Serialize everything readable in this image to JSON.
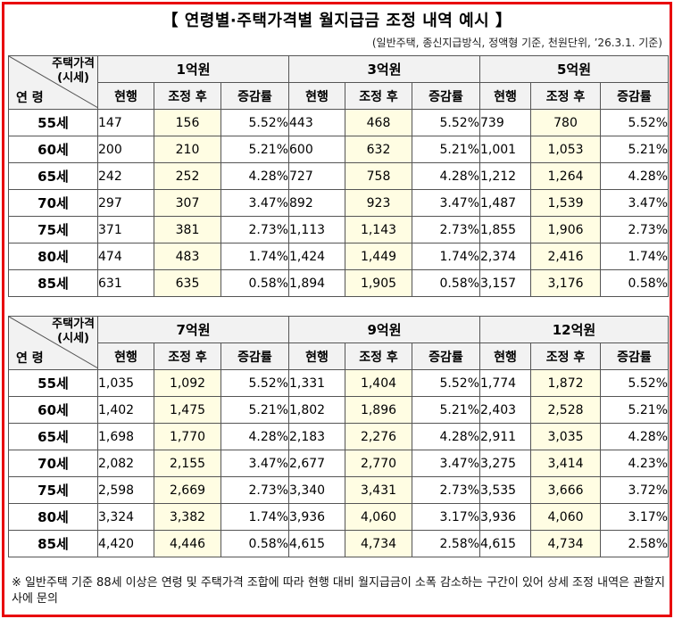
{
  "title": "【 연령별·주택가격별 월지급금 조정 내역 예시 】",
  "subtitle": "(일반주택, 종신지급방식, 정액형 기준, 천원단위, ’26.3.1. 기준)",
  "header": {
    "corner_top_line1": "주택가격",
    "corner_top_line2": "(시세)",
    "corner_bottom": "연 령",
    "col_current": "현행",
    "col_adjusted": "조정 후",
    "col_rate": "증감률"
  },
  "tables": [
    {
      "prices": [
        "1억원",
        "3억원",
        "5억원"
      ],
      "rows": [
        {
          "age": "55세",
          "cells": [
            [
              "147",
              "156",
              "5.52%"
            ],
            [
              "443",
              "468",
              "5.52%"
            ],
            [
              "739",
              "780",
              "5.52%"
            ]
          ]
        },
        {
          "age": "60세",
          "cells": [
            [
              "200",
              "210",
              "5.21%"
            ],
            [
              "600",
              "632",
              "5.21%"
            ],
            [
              "1,001",
              "1,053",
              "5.21%"
            ]
          ]
        },
        {
          "age": "65세",
          "cells": [
            [
              "242",
              "252",
              "4.28%"
            ],
            [
              "727",
              "758",
              "4.28%"
            ],
            [
              "1,212",
              "1,264",
              "4.28%"
            ]
          ]
        },
        {
          "age": "70세",
          "cells": [
            [
              "297",
              "307",
              "3.47%"
            ],
            [
              "892",
              "923",
              "3.47%"
            ],
            [
              "1,487",
              "1,539",
              "3.47%"
            ]
          ]
        },
        {
          "age": "75세",
          "cells": [
            [
              "371",
              "381",
              "2.73%"
            ],
            [
              "1,113",
              "1,143",
              "2.73%"
            ],
            [
              "1,855",
              "1,906",
              "2.73%"
            ]
          ]
        },
        {
          "age": "80세",
          "cells": [
            [
              "474",
              "483",
              "1.74%"
            ],
            [
              "1,424",
              "1,449",
              "1.74%"
            ],
            [
              "2,374",
              "2,416",
              "1.74%"
            ]
          ]
        },
        {
          "age": "85세",
          "cells": [
            [
              "631",
              "635",
              "0.58%"
            ],
            [
              "1,894",
              "1,905",
              "0.58%"
            ],
            [
              "3,157",
              "3,176",
              "0.58%"
            ]
          ]
        }
      ]
    },
    {
      "prices": [
        "7억원",
        "9억원",
        "12억원"
      ],
      "rows": [
        {
          "age": "55세",
          "cells": [
            [
              "1,035",
              "1,092",
              "5.52%"
            ],
            [
              "1,331",
              "1,404",
              "5.52%"
            ],
            [
              "1,774",
              "1,872",
              "5.52%"
            ]
          ]
        },
        {
          "age": "60세",
          "cells": [
            [
              "1,402",
              "1,475",
              "5.21%"
            ],
            [
              "1,802",
              "1,896",
              "5.21%"
            ],
            [
              "2,403",
              "2,528",
              "5.21%"
            ]
          ]
        },
        {
          "age": "65세",
          "cells": [
            [
              "1,698",
              "1,770",
              "4.28%"
            ],
            [
              "2,183",
              "2,276",
              "4.28%"
            ],
            [
              "2,911",
              "3,035",
              "4.28%"
            ]
          ]
        },
        {
          "age": "70세",
          "cells": [
            [
              "2,082",
              "2,155",
              "3.47%"
            ],
            [
              "2,677",
              "2,770",
              "3.47%"
            ],
            [
              "3,275",
              "3,414",
              "4.23%"
            ]
          ]
        },
        {
          "age": "75세",
          "cells": [
            [
              "2,598",
              "2,669",
              "2.73%"
            ],
            [
              "3,340",
              "3,431",
              "2.73%"
            ],
            [
              "3,535",
              "3,666",
              "3.72%"
            ]
          ]
        },
        {
          "age": "80세",
          "cells": [
            [
              "3,324",
              "3,382",
              "1.74%"
            ],
            [
              "3,936",
              "4,060",
              "3.17%"
            ],
            [
              "3,936",
              "4,060",
              "3.17%"
            ]
          ]
        },
        {
          "age": "85세",
          "cells": [
            [
              "4,420",
              "4,446",
              "0.58%"
            ],
            [
              "4,615",
              "4,734",
              "2.58%"
            ],
            [
              "4,615",
              "4,734",
              "2.58%"
            ]
          ]
        }
      ]
    }
  ],
  "note": "※ 일반주택 기준 88세 이상은 연령 및 주택가격 조합에 따라 현행 대비 월지급금이 소폭 감소하는 구간이 있어 상세 조정 내역은 관할지사에 문의"
}
